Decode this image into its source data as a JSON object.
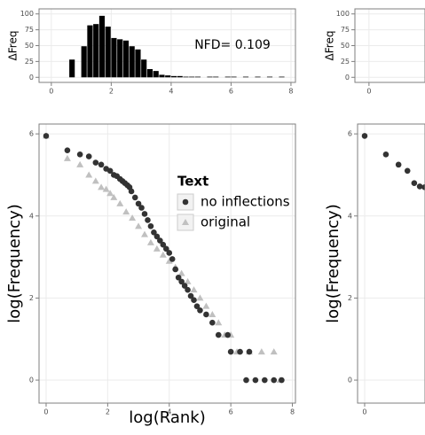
{
  "chart_data": [
    {
      "type": "histogram",
      "y_label": "ΔFreq",
      "annotation": "NFD= 0.109",
      "color": "#000000",
      "bins": [
        0.6,
        0.8,
        1.0,
        1.2,
        1.4,
        1.6,
        1.8,
        2.0,
        2.2,
        2.4,
        2.6,
        2.8,
        3.0,
        3.2,
        3.4,
        3.6,
        3.8,
        4.0,
        4.2,
        4.4,
        4.6,
        4.8,
        5.0,
        5.2,
        5.4,
        5.6,
        5.8,
        6.0,
        6.2,
        6.4,
        6.6,
        6.8,
        7.0,
        7.2,
        7.4,
        7.6,
        7.8
      ],
      "counts": [
        28,
        0,
        49,
        82,
        84,
        97,
        80,
        62,
        60,
        58,
        49,
        44,
        28,
        13,
        10,
        4,
        3,
        2,
        2,
        1,
        1,
        1,
        0,
        1,
        1,
        0,
        1,
        1,
        0,
        1,
        0,
        1,
        0,
        1,
        0,
        1
      ],
      "xlim": [
        -0.41,
        8.15
      ],
      "ylim": [
        -8,
        108
      ],
      "xticks": [
        0,
        2,
        4,
        6,
        8
      ],
      "yticks": [
        0,
        25,
        50,
        75,
        100
      ],
      "grid": true
    },
    {
      "type": "histogram",
      "y_label": "ΔFreq",
      "color": "#000000",
      "xlim": [
        -0.47,
        1.87
      ],
      "ylim": [
        -8,
        108
      ],
      "xticks": [
        0
      ],
      "yticks": [
        0,
        25,
        50,
        75,
        100
      ],
      "grid": true
    },
    {
      "type": "scatter",
      "x_label": "log(Rank)",
      "y_label": "log(Frequency)",
      "legend_title": "Text",
      "legend": "inside",
      "series": [
        {
          "name": "no inflections",
          "color": "#333333",
          "shape": "circle",
          "x": [
            0,
            0.69,
            1.1,
            1.39,
            1.61,
            1.79,
            1.95,
            2.08,
            2.2,
            2.3,
            2.4,
            2.48,
            2.56,
            2.64,
            2.71,
            2.77,
            2.89,
            3.0,
            3.1,
            3.2,
            3.3,
            3.4,
            3.5,
            3.6,
            3.7,
            3.8,
            3.9,
            4.0,
            4.1,
            4.2,
            4.3,
            4.4,
            4.5,
            4.6,
            4.7,
            4.8,
            4.9,
            5.0,
            5.2,
            5.4,
            5.6,
            5.9,
            6.0,
            6.3,
            6.6,
            6.5,
            6.8,
            7.1,
            7.4,
            7.65
          ],
          "values": [
            5.95,
            5.6,
            5.5,
            5.45,
            5.3,
            5.25,
            5.15,
            5.1,
            5.0,
            4.97,
            4.9,
            4.85,
            4.8,
            4.75,
            4.7,
            4.6,
            4.45,
            4.3,
            4.2,
            4.05,
            3.9,
            3.75,
            3.6,
            3.5,
            3.4,
            3.3,
            3.2,
            3.1,
            2.95,
            2.7,
            2.5,
            2.4,
            2.3,
            2.2,
            2.05,
            1.95,
            1.8,
            1.7,
            1.6,
            1.4,
            1.1,
            1.1,
            0.69,
            0.69,
            0.69,
            0,
            0,
            0,
            0,
            0
          ]
        },
        {
          "name": "original",
          "color": "#c0c0c0",
          "shape": "triangle",
          "x": [
            0,
            0.69,
            1.1,
            1.39,
            1.61,
            1.79,
            1.95,
            2.08,
            2.2,
            2.4,
            2.6,
            2.8,
            3.0,
            3.2,
            3.4,
            3.6,
            3.8,
            4.0,
            4.2,
            4.4,
            4.6,
            4.8,
            5.0,
            5.2,
            5.4,
            5.6,
            5.8,
            6.0,
            6.2,
            6.6,
            7.0,
            7.4,
            7.6
          ],
          "values": [
            5.95,
            5.4,
            5.25,
            5.0,
            4.85,
            4.7,
            4.65,
            4.55,
            4.45,
            4.3,
            4.1,
            3.95,
            3.75,
            3.55,
            3.35,
            3.2,
            3.05,
            2.9,
            2.75,
            2.6,
            2.4,
            2.2,
            2.0,
            1.8,
            1.6,
            1.4,
            1.1,
            1.1,
            0.69,
            0.69,
            0.69,
            0.69,
            0
          ]
        }
      ],
      "xlim": [
        -0.23,
        8.1
      ],
      "ylim": [
        -0.56,
        6.24
      ],
      "xticks": [
        0,
        2,
        4,
        6,
        8
      ],
      "yticks": [
        0,
        2,
        4,
        6
      ],
      "grid": true
    },
    {
      "type": "scatter",
      "y_label": "log(Frequency)",
      "series": [
        {
          "color": "#333333",
          "shape": "circle",
          "x": [
            0,
            0.69,
            1.1,
            1.39,
            1.61,
            1.79,
            1.95
          ],
          "values": [
            5.95,
            5.5,
            5.25,
            5.1,
            4.8,
            4.72,
            4.7
          ]
        }
      ],
      "xlim": [
        -0.23,
        1.96
      ],
      "ylim": [
        -0.56,
        6.24
      ],
      "xticks": [
        0
      ],
      "yticks": [
        0,
        2,
        4,
        6
      ],
      "grid": true
    }
  ]
}
